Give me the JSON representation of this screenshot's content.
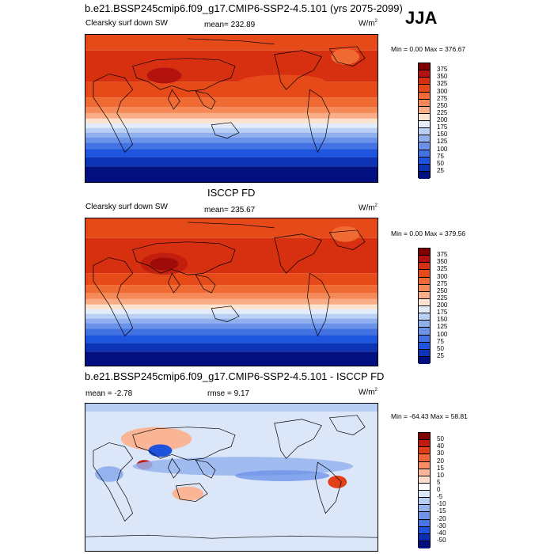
{
  "header": {
    "title": "b.e21.BSSP245cmip6.f09_g17.CMIP6-SSP2-4.5.101 (yrs 2075-2099)",
    "season": "JJA"
  },
  "panels": [
    {
      "left_label": "Clearsky surf down SW",
      "center_label": "mean= 232.89",
      "units": "W/m",
      "units_sup": "2",
      "minmax": "Min =   0.00 Max = 376.67",
      "colorbar": {
        "labels": [
          "375",
          "350",
          "325",
          "300",
          "275",
          "250",
          "225",
          "200",
          "175",
          "150",
          "125",
          "100",
          "75",
          "50",
          "25"
        ],
        "colors": [
          "#7f0000",
          "#b3120e",
          "#d73011",
          "#e64a19",
          "#f06a33",
          "#f58a58",
          "#f9ad86",
          "#fce3cf",
          "#e2ecfb",
          "#b9cff4",
          "#8fb0ed",
          "#6a92e8",
          "#4372e2",
          "#1e55de",
          "#0c34b5",
          "#02107f"
        ]
      }
    },
    {
      "top_title": "ISCCP FD",
      "left_label": "Clearsky surf down SW",
      "center_label": "mean= 235.67",
      "units": "W/m",
      "units_sup": "2",
      "minmax": "Min =   0.00 Max = 379.56",
      "colorbar": {
        "labels": [
          "375",
          "350",
          "325",
          "300",
          "275",
          "250",
          "225",
          "200",
          "175",
          "150",
          "125",
          "100",
          "75",
          "50",
          "25"
        ],
        "colors": [
          "#7f0000",
          "#b3120e",
          "#d73011",
          "#e64a19",
          "#f06a33",
          "#f58a58",
          "#f9ad86",
          "#fce3cf",
          "#e2ecfb",
          "#b9cff4",
          "#8fb0ed",
          "#6a92e8",
          "#4372e2",
          "#1e55de",
          "#0c34b5",
          "#02107f"
        ]
      }
    },
    {
      "top_title": "b.e21.BSSP245cmip6.f09_g17.CMIP6-SSP2-4.5.101 - ISCCP FD",
      "left_label": "mean =  -2.78",
      "center_label": "rmse =   9.17",
      "units": "W/m",
      "units_sup": "2",
      "minmax": "Min = -64.43 Max =  58.81",
      "colorbar": {
        "labels": [
          "50",
          "40",
          "30",
          "20",
          "15",
          "10",
          "5",
          "0",
          "-5",
          "-10",
          "-15",
          "-20",
          "-30",
          "-40",
          "-50"
        ],
        "colors": [
          "#7f0000",
          "#c01a0c",
          "#e3401a",
          "#f2663a",
          "#f68c62",
          "#f9b595",
          "#fcdccd",
          "#ffffff",
          "#dbe6f8",
          "#b8cdf3",
          "#94b3ee",
          "#6f95e8",
          "#4774e2",
          "#1e52dc",
          "#0a2db1",
          "#021080"
        ]
      }
    }
  ]
}
